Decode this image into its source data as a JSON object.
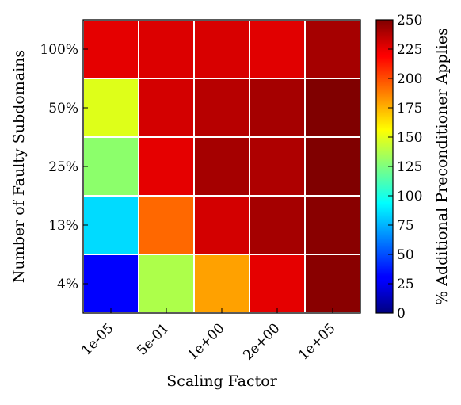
{
  "chart_data": {
    "type": "heatmap",
    "xlabel": "Scaling Factor",
    "ylabel": "Number of Faulty Subdomains",
    "colorbar_label": "% Additional Preconditioner Applies",
    "x_categories": [
      "1e-05",
      "5e-01",
      "1e+00",
      "2e+00",
      "1e+05"
    ],
    "y_categories": [
      "100%",
      "50%",
      "25%",
      "13%",
      "4%"
    ],
    "values": [
      [
        228,
        230,
        231,
        229,
        242
      ],
      [
        155,
        232,
        238,
        242,
        250
      ],
      [
        130,
        228,
        242,
        240,
        250
      ],
      [
        85,
        200,
        232,
        242,
        248
      ],
      [
        30,
        140,
        185,
        228,
        248
      ]
    ],
    "colorbar_range": [
      0,
      250
    ],
    "colorbar_ticks": [
      "0",
      "25",
      "50",
      "75",
      "100",
      "125",
      "150",
      "175",
      "200",
      "225",
      "250"
    ],
    "colormap": "jet",
    "cell_border_color": "#ffffff"
  }
}
